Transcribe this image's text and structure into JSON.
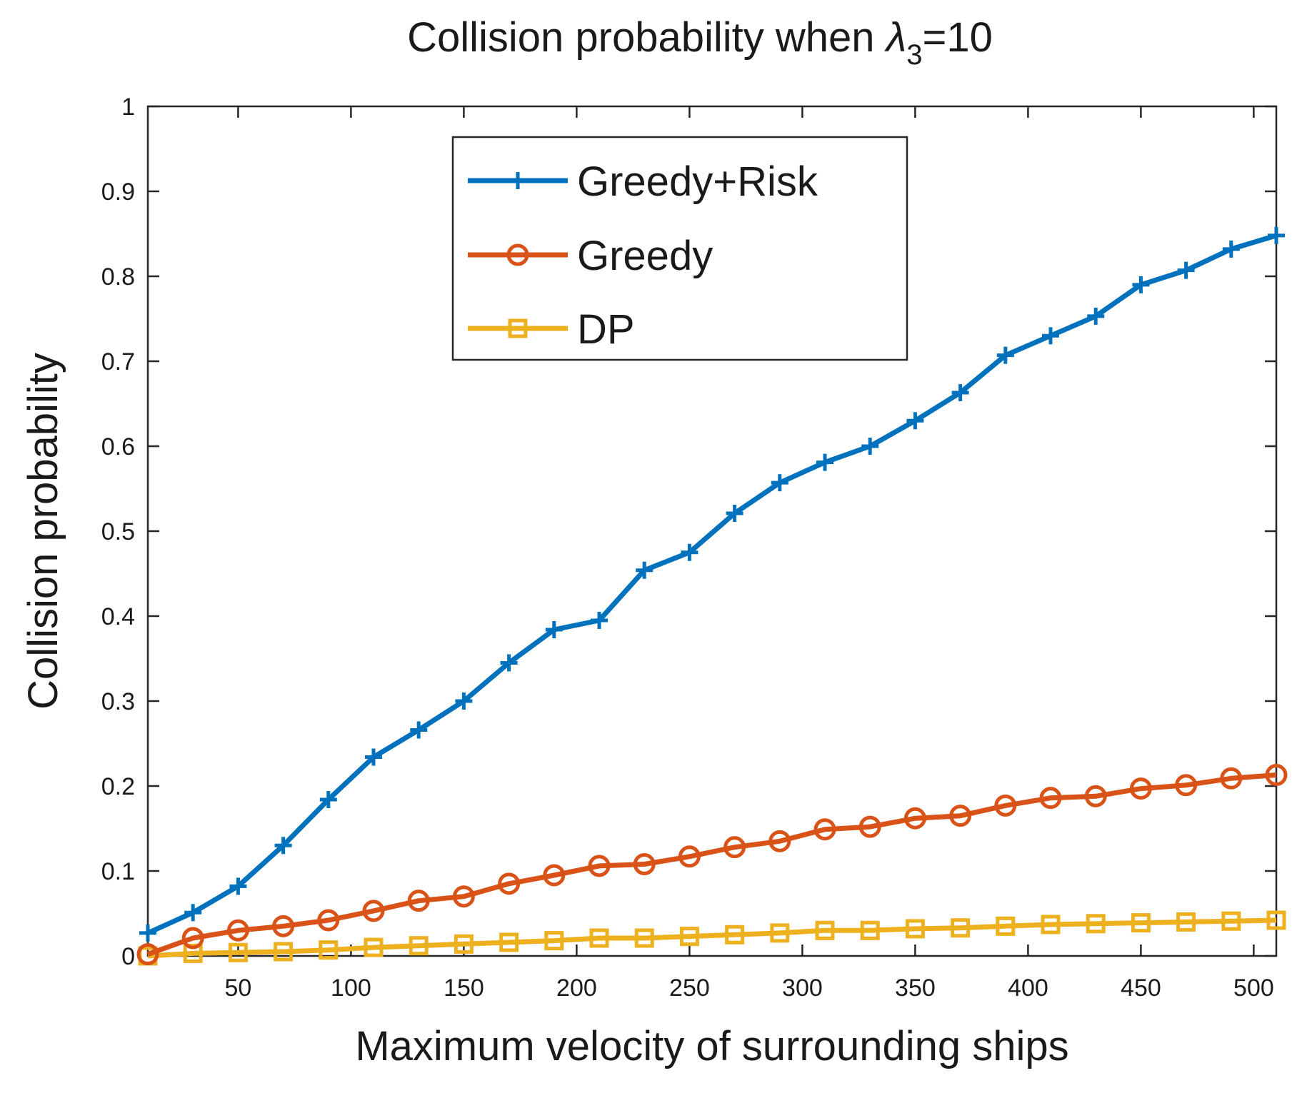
{
  "chart_data": {
    "type": "line",
    "title": "Collision probability when λ3=10",
    "title_parts": {
      "prefix": "Collision probability when ",
      "symbol": "λ",
      "subscript": "3",
      "suffix": "=10"
    },
    "xlabel": "Maximum velocity of surrounding ships",
    "ylabel": "Collision probability",
    "xlim": [
      10,
      510
    ],
    "ylim": [
      0,
      1
    ],
    "xticks": [
      50,
      100,
      150,
      200,
      250,
      300,
      350,
      400,
      450,
      500
    ],
    "yticks": [
      0,
      0.1,
      0.2,
      0.3,
      0.4,
      0.5,
      0.6,
      0.7,
      0.8,
      0.9,
      1
    ],
    "ytick_labels": [
      "0",
      "0.1",
      "0.2",
      "0.3",
      "0.4",
      "0.5",
      "0.6",
      "0.7",
      "0.8",
      "0.9",
      "1"
    ],
    "legend_position": "top-center",
    "x": [
      10,
      30,
      50,
      70,
      90,
      110,
      130,
      150,
      170,
      190,
      210,
      230,
      250,
      270,
      290,
      310,
      330,
      350,
      370,
      390,
      410,
      430,
      450,
      470,
      490,
      510
    ],
    "series": [
      {
        "name": "Greedy+Risk",
        "color": "#0072BD",
        "marker": "plus",
        "values": [
          0.027,
          0.051,
          0.082,
          0.13,
          0.184,
          0.234,
          0.266,
          0.3,
          0.345,
          0.384,
          0.395,
          0.454,
          0.475,
          0.521,
          0.557,
          0.581,
          0.6,
          0.63,
          0.663,
          0.707,
          0.73,
          0.753,
          0.79,
          0.807,
          0.832,
          0.848
        ]
      },
      {
        "name": "Greedy",
        "color": "#D95319",
        "marker": "circle",
        "values": [
          0.002,
          0.021,
          0.03,
          0.035,
          0.042,
          0.053,
          0.065,
          0.07,
          0.085,
          0.095,
          0.106,
          0.108,
          0.117,
          0.128,
          0.135,
          0.149,
          0.152,
          0.162,
          0.165,
          0.177,
          0.186,
          0.188,
          0.197,
          0.201,
          0.209,
          0.213
        ]
      },
      {
        "name": "DP",
        "color": "#EDB120",
        "marker": "square",
        "values": [
          0.0,
          0.003,
          0.004,
          0.005,
          0.007,
          0.01,
          0.012,
          0.014,
          0.016,
          0.018,
          0.021,
          0.021,
          0.023,
          0.025,
          0.027,
          0.03,
          0.03,
          0.032,
          0.033,
          0.035,
          0.037,
          0.038,
          0.039,
          0.04,
          0.041,
          0.042
        ]
      }
    ]
  }
}
